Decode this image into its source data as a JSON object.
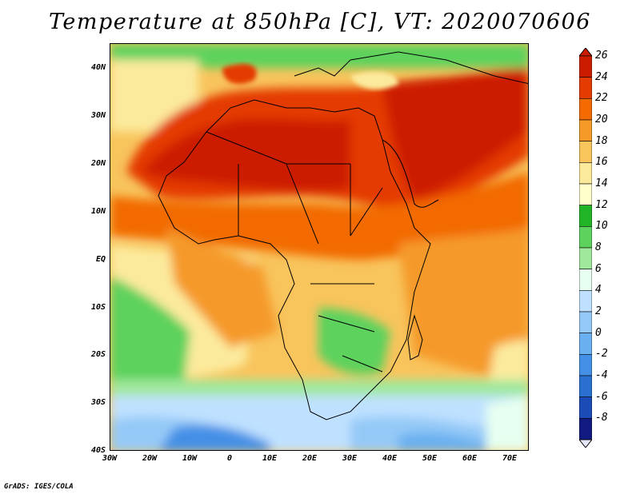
{
  "title": "Temperature at 850hPa [C], VT: 2020070606",
  "credit": "GrADS: IGES/COLA",
  "lat_labels": [
    "40N",
    "30N",
    "20N",
    "10N",
    "EQ",
    "10S",
    "20S",
    "30S",
    "40S"
  ],
  "lon_labels": [
    "30W",
    "20W",
    "10W",
    "0",
    "10E",
    "20E",
    "30E",
    "40E",
    "50E",
    "60E",
    "70E"
  ],
  "colorbar": {
    "labels": [
      "26",
      "24",
      "22",
      "20",
      "18",
      "16",
      "14",
      "12",
      "10",
      "8",
      "6",
      "4",
      "2",
      "0",
      "-2",
      "-4",
      "-6",
      "-8"
    ],
    "colors": [
      "#cc1c00",
      "#e43b00",
      "#f26a00",
      "#f59a29",
      "#f8c45c",
      "#fcea9c",
      "#ffffcc",
      "#22b427",
      "#5dd25d",
      "#a0e89c",
      "#e6fff0",
      "#bfe1ff",
      "#94c9f7",
      "#6ab0f0",
      "#4490e6",
      "#2b6fd1",
      "#1b4bb5",
      "#101a80"
    ]
  },
  "map": {
    "lat_range": [
      "40S",
      "45N"
    ],
    "lon_range": [
      "30W",
      "75E"
    ],
    "field": "Temperature at 850hPa",
    "units": "C"
  }
}
